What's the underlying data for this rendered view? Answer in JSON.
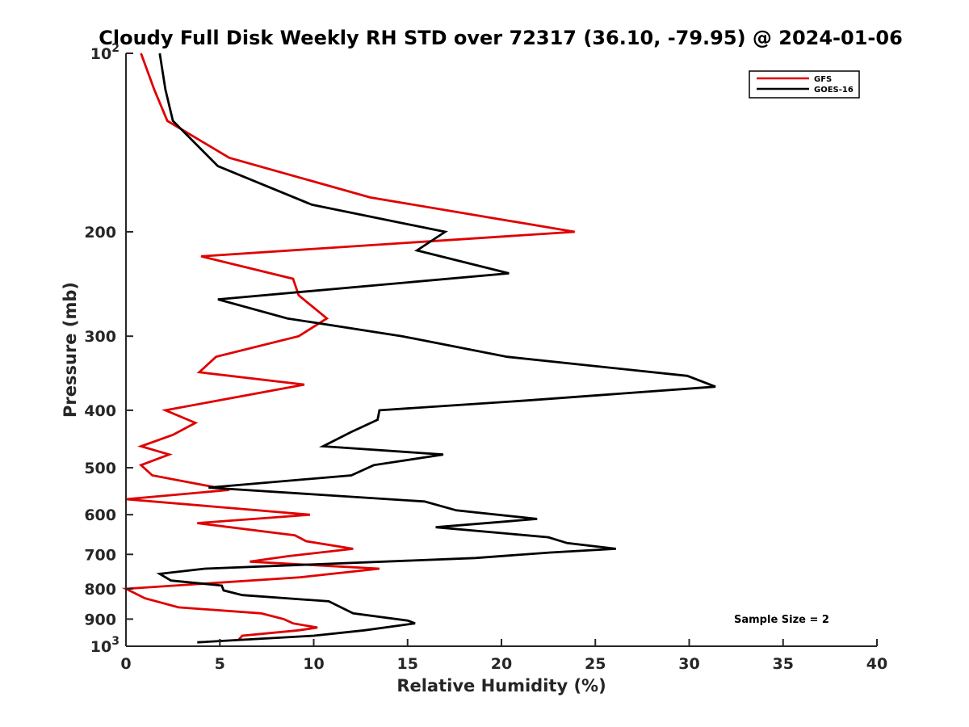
{
  "chart_data": {
    "type": "line",
    "title": "Cloudy Full Disk Weekly RH STD over 72317 (36.10, -79.95) @ 2024-01-06",
    "xlabel": "Relative Humidity (%)",
    "ylabel": "Pressure (mb)",
    "xlim": [
      0,
      40
    ],
    "ylim": [
      100,
      1000
    ],
    "y_scale": "log",
    "y_reversed": true,
    "grid": false,
    "legend_position": "top-right",
    "x_ticks": [
      0,
      5,
      10,
      15,
      20,
      25,
      30,
      35,
      40
    ],
    "y_ticks": [
      {
        "value": 100,
        "label": "10",
        "sup": "2"
      },
      {
        "value": 200,
        "label": "200",
        "sup": ""
      },
      {
        "value": 300,
        "label": "300",
        "sup": ""
      },
      {
        "value": 400,
        "label": "400",
        "sup": ""
      },
      {
        "value": 500,
        "label": "500",
        "sup": ""
      },
      {
        "value": 600,
        "label": "600",
        "sup": ""
      },
      {
        "value": 700,
        "label": "700",
        "sup": ""
      },
      {
        "value": 800,
        "label": "800",
        "sup": ""
      },
      {
        "value": 900,
        "label": "900",
        "sup": ""
      },
      {
        "value": 1000,
        "label": "10",
        "sup": "3"
      }
    ],
    "series": [
      {
        "name": "GFS",
        "color": "#e00000",
        "points": [
          [
            0.8,
            100
          ],
          [
            1.5,
            115
          ],
          [
            2.2,
            130
          ],
          [
            5.5,
            150
          ],
          [
            13,
            175
          ],
          [
            23.9,
            200
          ],
          [
            4.0,
            220
          ],
          [
            8.9,
            240
          ],
          [
            9.2,
            256
          ],
          [
            10.7,
            280
          ],
          [
            9.2,
            300
          ],
          [
            4.8,
            325
          ],
          [
            3.9,
            345
          ],
          [
            9.5,
            362
          ],
          [
            2.1,
            400
          ],
          [
            3.7,
            420
          ],
          [
            2.5,
            440
          ],
          [
            0.8,
            460
          ],
          [
            2.3,
            475
          ],
          [
            0.8,
            495
          ],
          [
            1.4,
            515
          ],
          [
            5.5,
            545
          ],
          [
            0.0,
            565
          ],
          [
            9.8,
            600
          ],
          [
            3.8,
            620
          ],
          [
            9.0,
            650
          ],
          [
            9.6,
            665
          ],
          [
            12.1,
            685
          ],
          [
            8.6,
            705
          ],
          [
            6.6,
            720
          ],
          [
            13.5,
            740
          ],
          [
            9.3,
            765
          ],
          [
            0.0,
            800
          ],
          [
            1.0,
            830
          ],
          [
            2.8,
            860
          ],
          [
            7.2,
            880
          ],
          [
            8.4,
            900
          ],
          [
            8.9,
            915
          ],
          [
            10.2,
            930
          ],
          [
            9.2,
            940
          ],
          [
            6.2,
            960
          ],
          [
            6.0,
            975
          ]
        ]
      },
      {
        "name": "GOES-16",
        "color": "#000000",
        "points": [
          [
            1.8,
            100
          ],
          [
            2.1,
            115
          ],
          [
            2.5,
            130
          ],
          [
            4.9,
            155
          ],
          [
            9.9,
            180
          ],
          [
            17.0,
            200
          ],
          [
            15.5,
            215
          ],
          [
            20.4,
            235
          ],
          [
            4.9,
            260
          ],
          [
            8.6,
            280
          ],
          [
            14.7,
            300
          ],
          [
            20.3,
            325
          ],
          [
            29.9,
            350
          ],
          [
            31.4,
            365
          ],
          [
            21.4,
            385
          ],
          [
            13.5,
            400
          ],
          [
            13.4,
            415
          ],
          [
            12.0,
            435
          ],
          [
            10.5,
            460
          ],
          [
            16.9,
            475
          ],
          [
            13.2,
            495
          ],
          [
            12.0,
            515
          ],
          [
            4.4,
            540
          ],
          [
            15.9,
            570
          ],
          [
            17.6,
            590
          ],
          [
            21.9,
            610
          ],
          [
            16.5,
            630
          ],
          [
            22.5,
            655
          ],
          [
            23.5,
            670
          ],
          [
            26.1,
            685
          ],
          [
            22.6,
            695
          ],
          [
            18.6,
            710
          ],
          [
            4.2,
            740
          ],
          [
            1.8,
            755
          ],
          [
            2.4,
            775
          ],
          [
            5.1,
            790
          ],
          [
            5.2,
            805
          ],
          [
            6.2,
            820
          ],
          [
            10.8,
            840
          ],
          [
            12.1,
            880
          ],
          [
            15.0,
            905
          ],
          [
            15.4,
            915
          ],
          [
            12.7,
            940
          ],
          [
            10.0,
            960
          ],
          [
            3.8,
            985
          ]
        ]
      }
    ],
    "annotation": "Sample Size = 2"
  }
}
